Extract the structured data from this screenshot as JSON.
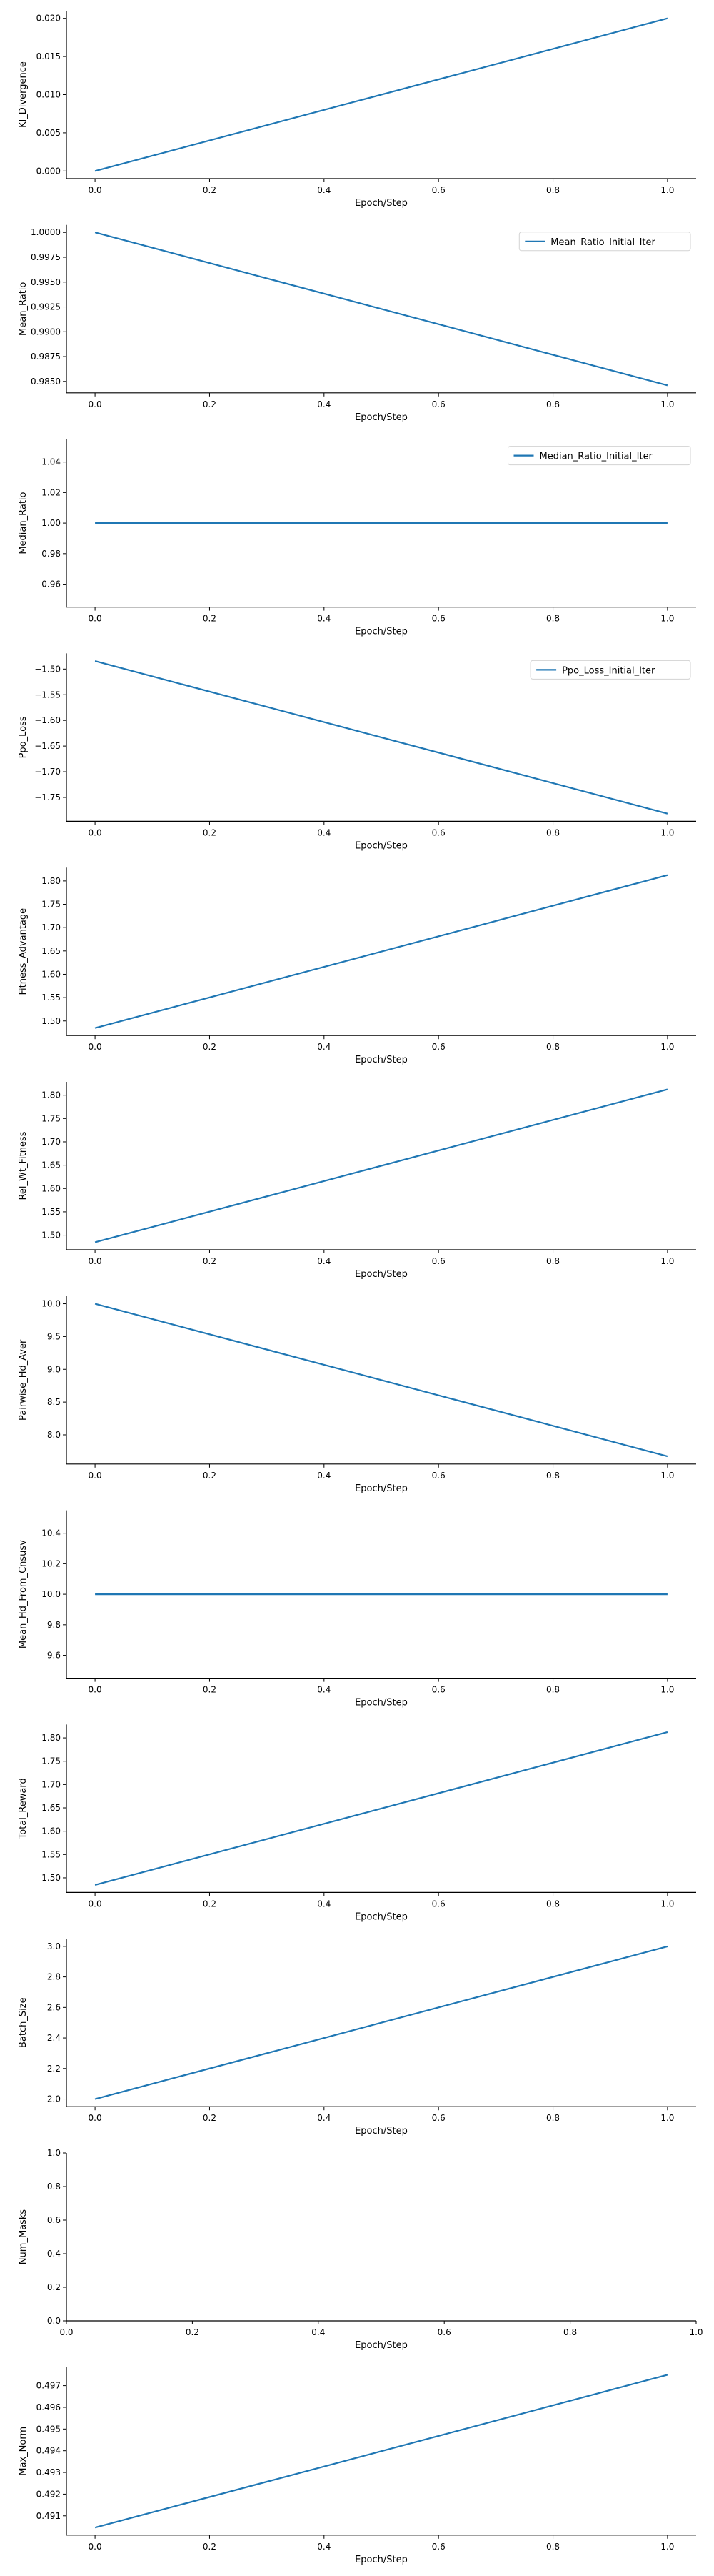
{
  "figure": {
    "line_color": "#1f77b4",
    "axis_color": "#000000",
    "background": "#ffffff"
  },
  "chart_data": [
    {
      "type": "line",
      "xlabel": "Epoch/Step",
      "ylabel": "Kl_Divergence",
      "xlim": [
        -0.05,
        1.05
      ],
      "ylim": [
        -0.001,
        0.021
      ],
      "x_ticks": [
        0.0,
        0.2,
        0.4,
        0.6,
        0.8,
        1.0
      ],
      "x_tick_labels": [
        "0.0",
        "0.2",
        "0.4",
        "0.6",
        "0.8",
        "1.0"
      ],
      "y_ticks": [
        0.0,
        0.005,
        0.01,
        0.015,
        0.02
      ],
      "y_tick_labels": [
        "0.000",
        "0.005",
        "0.010",
        "0.015",
        "0.020"
      ],
      "grid": false,
      "legend": null,
      "series": [
        {
          "x": [
            0.0,
            1.0
          ],
          "y": [
            0.0,
            0.02
          ]
        }
      ]
    },
    {
      "type": "line",
      "xlabel": "Epoch/Step",
      "ylabel": "Mean_Ratio",
      "xlim": [
        -0.05,
        1.05
      ],
      "ylim": [
        0.98385,
        1.00075
      ],
      "x_ticks": [
        0.0,
        0.2,
        0.4,
        0.6,
        0.8,
        1.0
      ],
      "x_tick_labels": [
        "0.0",
        "0.2",
        "0.4",
        "0.6",
        "0.8",
        "1.0"
      ],
      "y_ticks": [
        0.985,
        0.9875,
        0.99,
        0.9925,
        0.995,
        0.9975,
        1.0
      ],
      "y_tick_labels": [
        "0.9850",
        "0.9875",
        "0.9900",
        "0.9925",
        "0.9950",
        "0.9975",
        "1.0000"
      ],
      "grid": false,
      "legend": {
        "placement": "top-right",
        "entries": [
          "Mean_Ratio_Initial_Iter"
        ]
      },
      "series": [
        {
          "name": "Mean_Ratio_Initial_Iter",
          "x": [
            0.0,
            1.0
          ],
          "y": [
            1.0,
            0.9846
          ]
        }
      ]
    },
    {
      "type": "line",
      "xlabel": "Epoch/Step",
      "ylabel": "Median_Ratio",
      "xlim": [
        -0.05,
        1.05
      ],
      "ylim": [
        0.945,
        1.055
      ],
      "x_ticks": [
        0.0,
        0.2,
        0.4,
        0.6,
        0.8,
        1.0
      ],
      "x_tick_labels": [
        "0.0",
        "0.2",
        "0.4",
        "0.6",
        "0.8",
        "1.0"
      ],
      "y_ticks": [
        0.96,
        0.98,
        1.0,
        1.02,
        1.04
      ],
      "y_tick_labels": [
        "0.96",
        "0.98",
        "1.00",
        "1.02",
        "1.04"
      ],
      "grid": false,
      "legend": {
        "placement": "top-right",
        "entries": [
          "Median_Ratio_Initial_Iter"
        ]
      },
      "series": [
        {
          "name": "Median_Ratio_Initial_Iter",
          "x": [
            0.0,
            1.0
          ],
          "y": [
            1.0,
            1.0
          ]
        }
      ]
    },
    {
      "type": "line",
      "xlabel": "Epoch/Step",
      "ylabel": "Ppo_Loss",
      "xlim": [
        -0.05,
        1.05
      ],
      "ylim": [
        -1.7965,
        -1.4695
      ],
      "x_ticks": [
        0.0,
        0.2,
        0.4,
        0.6,
        0.8,
        1.0
      ],
      "x_tick_labels": [
        "0.0",
        "0.2",
        "0.4",
        "0.6",
        "0.8",
        "1.0"
      ],
      "y_ticks": [
        -1.75,
        -1.7,
        -1.65,
        -1.6,
        -1.55,
        -1.5
      ],
      "y_tick_labels": [
        "−1.75",
        "−1.70",
        "−1.65",
        "−1.60",
        "−1.55",
        "−1.50"
      ],
      "grid": false,
      "legend": {
        "placement": "top-right",
        "entries": [
          "Ppo_Loss_Initial_Iter"
        ]
      },
      "series": [
        {
          "name": "Ppo_Loss_Initial_Iter",
          "x": [
            0.0,
            1.0
          ],
          "y": [
            -1.4844,
            -1.7816
          ]
        }
      ]
    },
    {
      "type": "line",
      "xlabel": "Epoch/Step",
      "ylabel": "Fitness_Advantage",
      "xlim": [
        -0.05,
        1.05
      ],
      "ylim": [
        1.4687,
        1.8286
      ],
      "x_ticks": [
        0.0,
        0.2,
        0.4,
        0.6,
        0.8,
        1.0
      ],
      "x_tick_labels": [
        "0.0",
        "0.2",
        "0.4",
        "0.6",
        "0.8",
        "1.0"
      ],
      "y_ticks": [
        1.5,
        1.55,
        1.6,
        1.65,
        1.7,
        1.75,
        1.8
      ],
      "y_tick_labels": [
        "1.50",
        "1.55",
        "1.60",
        "1.65",
        "1.70",
        "1.75",
        "1.80"
      ],
      "grid": false,
      "legend": null,
      "series": [
        {
          "x": [
            0.0,
            1.0
          ],
          "y": [
            1.4848,
            1.8125
          ]
        }
      ]
    },
    {
      "type": "line",
      "xlabel": "Epoch/Step",
      "ylabel": "Rel_Wt_Fitness",
      "xlim": [
        -0.05,
        1.05
      ],
      "ylim": [
        1.4687,
        1.8286
      ],
      "x_ticks": [
        0.0,
        0.2,
        0.4,
        0.6,
        0.8,
        1.0
      ],
      "x_tick_labels": [
        "0.0",
        "0.2",
        "0.4",
        "0.6",
        "0.8",
        "1.0"
      ],
      "y_ticks": [
        1.5,
        1.55,
        1.6,
        1.65,
        1.7,
        1.75,
        1.8
      ],
      "y_tick_labels": [
        "1.50",
        "1.55",
        "1.60",
        "1.65",
        "1.70",
        "1.75",
        "1.80"
      ],
      "grid": false,
      "legend": null,
      "series": [
        {
          "x": [
            0.0,
            1.0
          ],
          "y": [
            1.4848,
            1.8125
          ]
        }
      ]
    },
    {
      "type": "line",
      "xlabel": "Epoch/Step",
      "ylabel": "Pairwise_Hd_Aver",
      "xlim": [
        -0.05,
        1.05
      ],
      "ylim": [
        7.555,
        10.117
      ],
      "x_ticks": [
        0.0,
        0.2,
        0.4,
        0.6,
        0.8,
        1.0
      ],
      "x_tick_labels": [
        "0.0",
        "0.2",
        "0.4",
        "0.6",
        "0.8",
        "1.0"
      ],
      "y_ticks": [
        8.0,
        8.5,
        9.0,
        9.5,
        10.0
      ],
      "y_tick_labels": [
        "8.0",
        "8.5",
        "9.0",
        "9.5",
        "10.0"
      ],
      "grid": false,
      "legend": null,
      "series": [
        {
          "x": [
            0.0,
            1.0
          ],
          "y": [
            10.0,
            7.672
          ]
        }
      ]
    },
    {
      "type": "line",
      "xlabel": "Epoch/Step",
      "ylabel": "Mean_Hd_From_Cnsusv",
      "xlim": [
        -0.05,
        1.05
      ],
      "ylim": [
        9.45,
        10.55
      ],
      "x_ticks": [
        0.0,
        0.2,
        0.4,
        0.6,
        0.8,
        1.0
      ],
      "x_tick_labels": [
        "0.0",
        "0.2",
        "0.4",
        "0.6",
        "0.8",
        "1.0"
      ],
      "y_ticks": [
        9.6,
        9.8,
        10.0,
        10.2,
        10.4
      ],
      "y_tick_labels": [
        "9.6",
        "9.8",
        "10.0",
        "10.2",
        "10.4"
      ],
      "grid": false,
      "legend": null,
      "series": [
        {
          "x": [
            0.0,
            1.0
          ],
          "y": [
            10.0,
            10.0
          ]
        }
      ]
    },
    {
      "type": "line",
      "xlabel": "Epoch/Step",
      "ylabel": "Total_Reward",
      "xlim": [
        -0.05,
        1.05
      ],
      "ylim": [
        1.4687,
        1.8286
      ],
      "x_ticks": [
        0.0,
        0.2,
        0.4,
        0.6,
        0.8,
        1.0
      ],
      "x_tick_labels": [
        "0.0",
        "0.2",
        "0.4",
        "0.6",
        "0.8",
        "1.0"
      ],
      "y_ticks": [
        1.5,
        1.55,
        1.6,
        1.65,
        1.7,
        1.75,
        1.8
      ],
      "y_tick_labels": [
        "1.50",
        "1.55",
        "1.60",
        "1.65",
        "1.70",
        "1.75",
        "1.80"
      ],
      "grid": false,
      "legend": null,
      "series": [
        {
          "x": [
            0.0,
            1.0
          ],
          "y": [
            1.4848,
            1.8125
          ]
        }
      ]
    },
    {
      "type": "line",
      "xlabel": "Epoch/Step",
      "ylabel": "Batch_Size",
      "xlim": [
        -0.05,
        1.05
      ],
      "ylim": [
        1.95,
        3.05
      ],
      "x_ticks": [
        0.0,
        0.2,
        0.4,
        0.6,
        0.8,
        1.0
      ],
      "x_tick_labels": [
        "0.0",
        "0.2",
        "0.4",
        "0.6",
        "0.8",
        "1.0"
      ],
      "y_ticks": [
        2.0,
        2.2,
        2.4,
        2.6,
        2.8,
        3.0
      ],
      "y_tick_labels": [
        "2.0",
        "2.2",
        "2.4",
        "2.6",
        "2.8",
        "3.0"
      ],
      "grid": false,
      "legend": null,
      "series": [
        {
          "x": [
            0.0,
            1.0
          ],
          "y": [
            2.0,
            3.0
          ]
        }
      ]
    },
    {
      "type": "line",
      "xlabel": "Epoch/Step",
      "ylabel": "Num_Masks",
      "xlim": [
        0.0,
        1.0
      ],
      "ylim": [
        0.0,
        1.0
      ],
      "x_ticks": [
        0.0,
        0.2,
        0.4,
        0.6,
        0.8,
        1.0
      ],
      "x_tick_labels": [
        "0.0",
        "0.2",
        "0.4",
        "0.6",
        "0.8",
        "1.0"
      ],
      "y_ticks": [
        0.0,
        0.2,
        0.4,
        0.6,
        0.8,
        1.0
      ],
      "y_tick_labels": [
        "0.0",
        "0.2",
        "0.4",
        "0.6",
        "0.8",
        "1.0"
      ],
      "grid": false,
      "legend": null,
      "series": []
    },
    {
      "type": "line",
      "xlabel": "Epoch/Step",
      "ylabel": "Max_Norm",
      "xlim": [
        -0.05,
        1.05
      ],
      "ylim": [
        0.49011,
        0.49785
      ],
      "x_ticks": [
        0.0,
        0.2,
        0.4,
        0.6,
        0.8,
        1.0
      ],
      "x_tick_labels": [
        "0.0",
        "0.2",
        "0.4",
        "0.6",
        "0.8",
        "1.0"
      ],
      "y_ticks": [
        0.491,
        0.492,
        0.493,
        0.494,
        0.495,
        0.496,
        0.497
      ],
      "y_tick_labels": [
        "0.491",
        "0.492",
        "0.493",
        "0.494",
        "0.495",
        "0.496",
        "0.497"
      ],
      "grid": false,
      "legend": null,
      "series": [
        {
          "x": [
            0.0,
            1.0
          ],
          "y": [
            0.49046,
            0.4975
          ]
        }
      ]
    }
  ]
}
